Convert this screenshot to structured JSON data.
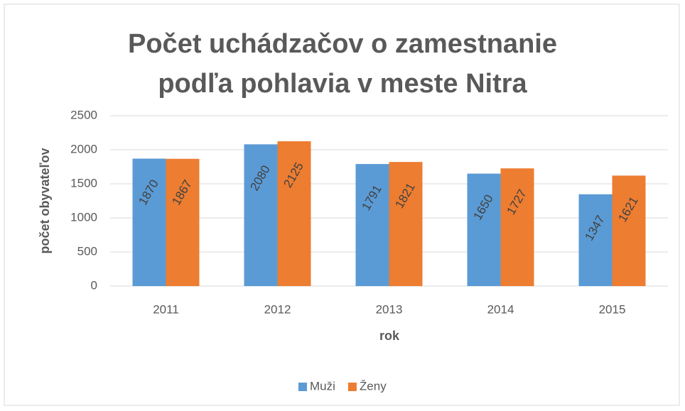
{
  "chart_data": {
    "type": "bar",
    "title": "Počet uchádzačov o zamestnanie podľa pohlavia v meste Nitra",
    "x_label": "rok",
    "y_label": "počet obyvateľov",
    "categories": [
      "2011",
      "2012",
      "2013",
      "2014",
      "2015"
    ],
    "series": [
      {
        "name": "Muži",
        "color": "#5b9bd5",
        "values": [
          1870,
          2080,
          1791,
          1650,
          1347
        ]
      },
      {
        "name": "Ženy",
        "color": "#ed7d31",
        "values": [
          1867,
          2125,
          1821,
          1727,
          1621
        ]
      }
    ],
    "ylim": [
      0,
      2500
    ],
    "yticks": [
      0,
      500,
      1000,
      1500,
      2000,
      2500
    ],
    "grid": true,
    "legend": "bottom"
  }
}
